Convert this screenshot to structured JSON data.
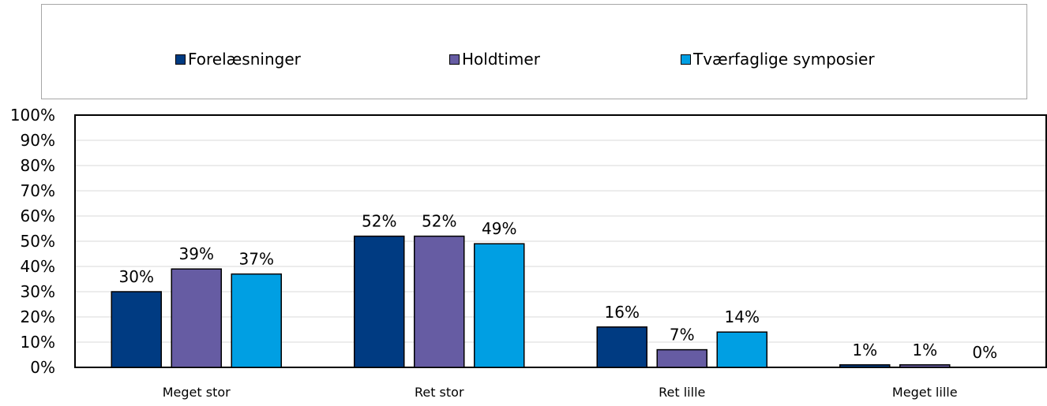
{
  "chart_data": {
    "type": "bar",
    "categories": [
      "Meget stor",
      "Ret stor",
      "Ret lille",
      "Meget lille"
    ],
    "series": [
      {
        "name": "Forelæsninger",
        "color": "#003b82",
        "values": [
          30,
          52,
          16,
          1
        ],
        "labels": [
          "30%",
          "52%",
          "16%",
          "1%"
        ]
      },
      {
        "name": "Holdtimer",
        "color": "#665ca3",
        "values": [
          39,
          52,
          7,
          1
        ],
        "labels": [
          "39%",
          "52%",
          "7%",
          "1%"
        ]
      },
      {
        "name": "Tværfaglige symposier",
        "color": "#009fe3",
        "values": [
          37,
          49,
          14,
          0
        ],
        "labels": [
          "37%",
          "49%",
          "14%",
          "0%"
        ]
      }
    ],
    "y_ticks": [
      "0%",
      "10%",
      "20%",
      "30%",
      "40%",
      "50%",
      "60%",
      "70%",
      "80%",
      "90%",
      "100%"
    ],
    "ylim": [
      0,
      100
    ],
    "grid": true,
    "legend_position": "top",
    "title": "",
    "xlabel": "",
    "ylabel": ""
  }
}
